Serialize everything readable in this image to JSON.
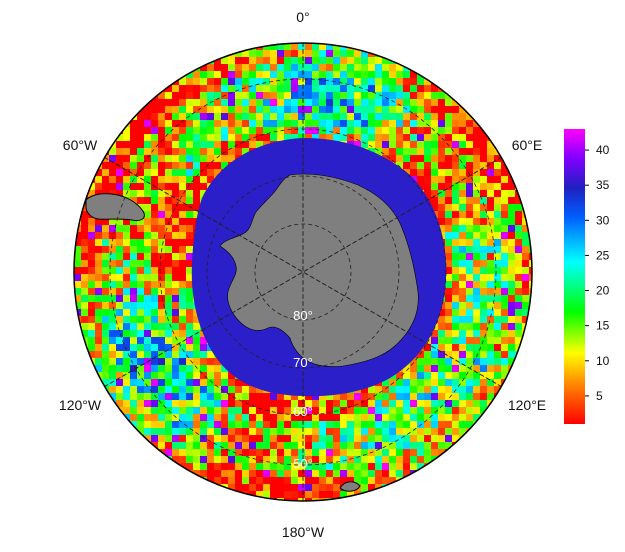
{
  "map": {
    "projection": "south polar stereographic",
    "longitude_labels": {
      "top": "0°",
      "upper_left": "60°W",
      "upper_right": "60°E",
      "lower_left": "120°W",
      "lower_right": "120°E",
      "bottom": "180°W"
    },
    "latitude_labels": {
      "lat80": "80°",
      "lat70": "70°",
      "lat60": "60°",
      "lat50": "50°"
    },
    "colors": {
      "land": "#7f7f7f",
      "ice_zone": "#2a1fc9",
      "graticule": "#222222",
      "border": "#000000"
    }
  },
  "colorbar": {
    "min": 1,
    "max": 43,
    "ticks": [
      "5",
      "10",
      "15",
      "20",
      "25",
      "30",
      "35",
      "40"
    ],
    "tick_values": [
      5,
      10,
      15,
      20,
      25,
      30,
      35,
      40
    ],
    "colormap": "rainbow (red→yellow→green→cyan→blue→magenta)"
  }
}
